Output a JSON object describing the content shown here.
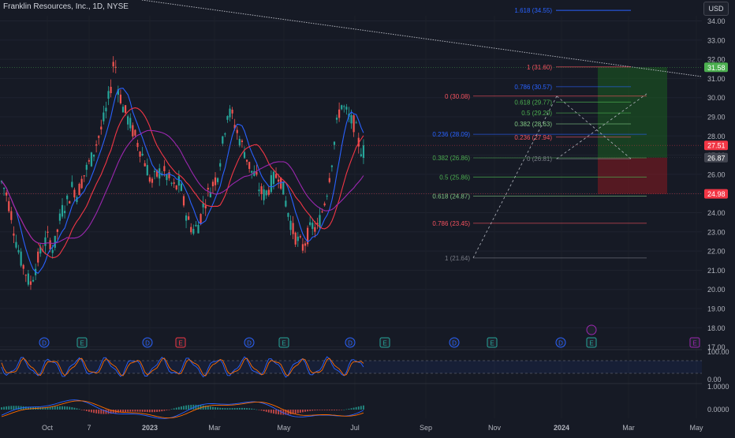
{
  "header": {
    "symbol_title": "Franklin Resources, Inc., 1D, NYSE",
    "currency_button": "USD"
  },
  "colors": {
    "background": "#161a25",
    "up_candle": "#26a69a",
    "down_candle": "#ef5350",
    "ma_fast": "#2962ff",
    "ma_mid": "#f23645",
    "ma_slow": "#9c27b0",
    "fib_level": "#f7525f",
    "target_zone": "#1b5e20",
    "stop_zone": "#801922"
  },
  "chart_data": {
    "type": "candlestick",
    "title": "Franklin Resources, Inc., 1D, NYSE",
    "y_axis": {
      "ticks": [
        "34.00",
        "33.00",
        "32.00",
        "31.00",
        "30.00",
        "29.00",
        "28.00",
        "27.00",
        "26.00",
        "25.00",
        "24.00",
        "23.00",
        "22.00",
        "21.00",
        "20.00",
        "19.00",
        "18.00",
        "17.00"
      ],
      "range": [
        17.0,
        34.6
      ]
    },
    "x_axis": {
      "ticks": [
        "Oct",
        "7",
        "2023",
        "Mar",
        "May",
        "Jul",
        "Sep",
        "Nov",
        "2024",
        "Mar",
        "May"
      ]
    },
    "price_trace": [
      [
        0,
        25.6
      ],
      [
        6,
        25.0
      ],
      [
        12,
        24.0
      ],
      [
        18,
        22.6
      ],
      [
        24,
        21.6
      ],
      [
        30,
        21.0
      ],
      [
        36,
        20.2
      ],
      [
        42,
        21.0
      ],
      [
        48,
        21.8
      ],
      [
        54,
        22.4
      ],
      [
        60,
        22.7
      ],
      [
        66,
        22.0
      ],
      [
        72,
        23.3
      ],
      [
        78,
        24.3
      ],
      [
        84,
        24.6
      ],
      [
        90,
        25.4
      ],
      [
        96,
        24.9
      ],
      [
        102,
        25.7
      ],
      [
        108,
        26.3
      ],
      [
        114,
        26.8
      ],
      [
        120,
        27.6
      ],
      [
        126,
        28.3
      ],
      [
        132,
        29.2
      ],
      [
        138,
        30.4
      ],
      [
        143,
        32.2
      ],
      [
        148,
        30.5
      ],
      [
        154,
        29.5
      ],
      [
        160,
        28.9
      ],
      [
        166,
        28.3
      ],
      [
        172,
        27.7
      ],
      [
        178,
        27.1
      ],
      [
        184,
        26.4
      ],
      [
        190,
        25.5
      ],
      [
        196,
        25.9
      ],
      [
        202,
        26.2
      ],
      [
        208,
        26.0
      ],
      [
        214,
        25.6
      ],
      [
        220,
        25.2
      ],
      [
        226,
        25.6
      ],
      [
        232,
        24.3
      ],
      [
        238,
        23.4
      ],
      [
        244,
        23.1
      ],
      [
        250,
        23.4
      ],
      [
        256,
        24.4
      ],
      [
        262,
        25.0
      ],
      [
        268,
        25.5
      ],
      [
        274,
        26.0
      ],
      [
        280,
        27.5
      ],
      [
        286,
        29.2
      ],
      [
        292,
        29.1
      ],
      [
        298,
        28.3
      ],
      [
        304,
        27.6
      ],
      [
        310,
        27.0
      ],
      [
        316,
        26.2
      ],
      [
        322,
        25.9
      ],
      [
        328,
        25.1
      ],
      [
        334,
        24.9
      ],
      [
        340,
        25.4
      ],
      [
        346,
        25.8
      ],
      [
        352,
        26.1
      ],
      [
        358,
        25.0
      ],
      [
        364,
        23.9
      ],
      [
        370,
        23.0
      ],
      [
        376,
        22.5
      ],
      [
        382,
        22.2
      ],
      [
        388,
        22.8
      ],
      [
        394,
        23.3
      ],
      [
        400,
        23.1
      ],
      [
        406,
        24.0
      ],
      [
        412,
        25.0
      ],
      [
        418,
        26.5
      ],
      [
        424,
        28.3
      ],
      [
        430,
        29.7
      ],
      [
        436,
        29.3
      ],
      [
        442,
        28.8
      ],
      [
        448,
        28.6
      ],
      [
        454,
        27.4
      ],
      [
        458,
        27.2
      ]
    ],
    "moving_averages": [
      {
        "name": "MA fast",
        "color": "#2962ff"
      },
      {
        "name": "MA mid",
        "color": "#f23645"
      },
      {
        "name": "MA slow",
        "color": "#9c27b0"
      }
    ],
    "fib_retracement_left": [
      {
        "label": "1 (31.60)",
        "value": 31.6
      },
      {
        "label": "0.786 (30.57)",
        "value": 30.57
      },
      {
        "label": "0.618 (29.77)",
        "value": 29.77
      },
      {
        "label": "0.5 (29.20)",
        "value": 29.2
      },
      {
        "label": "0.382 (28.63)",
        "value": 28.63
      },
      {
        "label": "0.236 (27.94)",
        "value": 27.94
      },
      {
        "label": "0 (26.81)",
        "value": 26.81
      }
    ],
    "fib_retracement_right": [
      {
        "label": "0 (30.08)",
        "value": 30.08
      },
      {
        "label": "0.236 (28.09)",
        "value": 28.09
      },
      {
        "label": "0.382 (26.86)",
        "value": 26.86
      },
      {
        "label": "0.5 (25.86)",
        "value": 25.86
      },
      {
        "label": "0.618 (24.87)",
        "value": 24.87
      },
      {
        "label": "0.786 (23.45)",
        "value": 23.45
      },
      {
        "label": "1 (21.64)",
        "value": 21.64
      }
    ],
    "fib_extension": {
      "label": "1.618 (34.55)",
      "value": 34.55
    },
    "price_labels": [
      {
        "text": "31.58",
        "value": 31.58,
        "color": "#4caf50"
      },
      {
        "text": "27.51",
        "value": 27.51,
        "color": "#f23645"
      },
      {
        "text": "26.87",
        "value": 26.87,
        "color": "#434651"
      },
      {
        "text": "24.98",
        "value": 24.98,
        "color": "#f23645"
      }
    ],
    "position_tool": {
      "target": 31.58,
      "entry": 26.87,
      "stop": 24.98
    },
    "event_markers": [
      {
        "letter": "D",
        "type": "dividend"
      },
      {
        "letter": "E",
        "type": "earnings"
      },
      {
        "letter": "D",
        "type": "dividend"
      },
      {
        "letter": "E",
        "type": "earnings"
      },
      {
        "letter": "D",
        "type": "dividend"
      },
      {
        "letter": "E",
        "type": "earnings"
      },
      {
        "letter": "D",
        "type": "dividend"
      },
      {
        "letter": "E",
        "type": "earnings"
      },
      {
        "letter": "D",
        "type": "dividend"
      },
      {
        "letter": "E",
        "type": "earnings"
      },
      {
        "letter": "D",
        "type": "dividend"
      },
      {
        "letter": "E",
        "type": "earnings"
      },
      {
        "letter": "E",
        "type": "earnings"
      }
    ],
    "stoch_rsi": {
      "ticks": [
        "100.00",
        "0.00"
      ]
    },
    "macd": {
      "ticks": [
        "1.0000",
        "0.0000"
      ]
    }
  }
}
